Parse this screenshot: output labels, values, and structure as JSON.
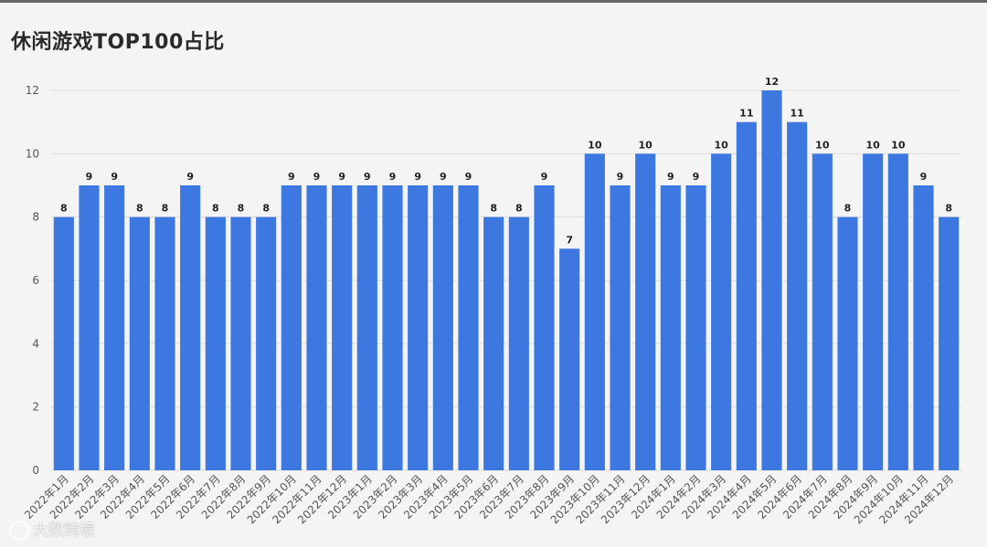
{
  "title": "休闲游戏TOP100占比",
  "watermark": "大数跨境",
  "colors": {
    "bar": "#3d78e0",
    "grid": "#dcdcdc",
    "label": "#222222",
    "axis_text": "#555555"
  },
  "chart_data": {
    "type": "bar",
    "title": "休闲游戏TOP100占比",
    "xlabel": "",
    "ylabel": "",
    "ylim": [
      0,
      12
    ],
    "yticks": [
      0,
      2,
      4,
      6,
      8,
      10,
      12
    ],
    "grid": true,
    "categories": [
      "2022年1月",
      "2022年2月",
      "2022年3月",
      "2022年4月",
      "2022年5月",
      "2022年6月",
      "2022年7月",
      "2022年8月",
      "2022年9月",
      "2022年10月",
      "2022年11月",
      "2022年12月",
      "2023年1月",
      "2023年2月",
      "2023年3月",
      "2023年4月",
      "2023年5月",
      "2023年6月",
      "2023年7月",
      "2023年8月",
      "2023年9月",
      "2023年10月",
      "2023年11月",
      "2023年12月",
      "2024年1月",
      "2024年2月",
      "2024年3月",
      "2024年4月",
      "2024年5月",
      "2024年6月",
      "2024年7月",
      "2024年8月",
      "2024年9月",
      "2024年10月",
      "2024年11月",
      "2024年12月"
    ],
    "values": [
      8,
      9,
      9,
      8,
      8,
      9,
      8,
      8,
      8,
      9,
      9,
      9,
      9,
      9,
      9,
      9,
      9,
      8,
      8,
      9,
      7,
      10,
      9,
      10,
      9,
      9,
      10,
      11,
      12,
      11,
      10,
      8,
      10,
      10,
      9,
      8
    ]
  }
}
